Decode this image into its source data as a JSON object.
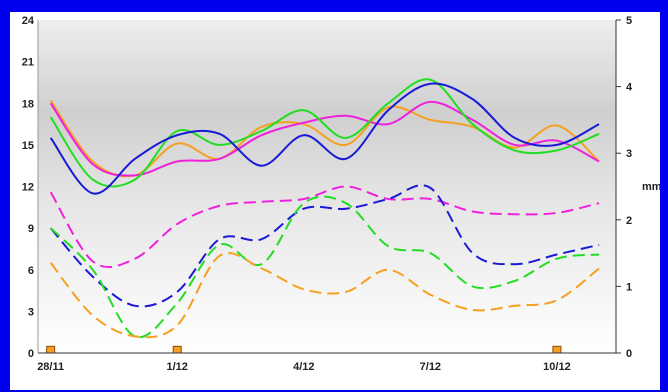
{
  "chart_data": {
    "type": "line",
    "title": "",
    "x_tick_labels": [
      "28/11",
      "1/12",
      "4/12",
      "7/12",
      "10/12"
    ],
    "x_tick_positions": [
      0,
      3,
      6,
      9,
      12
    ],
    "x_range": [
      -0.3,
      13.4
    ],
    "y_left": {
      "range": [
        0,
        24
      ],
      "ticks": [
        0,
        3,
        6,
        9,
        12,
        15,
        18,
        21,
        24
      ]
    },
    "y_right": {
      "label": "mm",
      "range": [
        0,
        5
      ],
      "ticks": [
        0,
        1,
        2,
        3,
        4,
        5
      ]
    },
    "colors": {
      "blue": "#1a1ad6",
      "green": "#22dd22",
      "orange": "#f5a020",
      "magenta": "#ee22dd",
      "bar": "#f5a020"
    },
    "series": [
      {
        "color": "orange",
        "style": "solid",
        "axis": "left",
        "x": [
          0,
          1,
          2,
          3,
          4,
          5,
          6,
          7,
          8,
          9,
          10,
          11,
          12,
          13
        ],
        "y": [
          18.2,
          13.8,
          12.8,
          15.1,
          14.0,
          16.3,
          16.5,
          15.0,
          17.7,
          16.8,
          16.3,
          14.8,
          16.4,
          13.8
        ]
      },
      {
        "color": "magenta",
        "style": "solid",
        "axis": "left",
        "x": [
          0,
          1,
          2,
          3,
          4,
          5,
          6,
          7,
          8,
          9,
          10,
          11,
          12,
          13
        ],
        "y": [
          18.0,
          13.6,
          12.8,
          13.8,
          14.0,
          15.7,
          16.6,
          17.1,
          16.5,
          18.1,
          16.8,
          15.0,
          15.3,
          13.8
        ]
      },
      {
        "color": "green",
        "style": "solid",
        "axis": "left",
        "x": [
          0,
          1,
          2,
          3,
          4,
          5,
          6,
          7,
          8,
          9,
          10,
          11,
          12,
          13
        ],
        "y": [
          17.0,
          12.5,
          12.5,
          16.0,
          15.0,
          16.0,
          17.5,
          15.5,
          18.0,
          19.7,
          16.5,
          14.6,
          14.6,
          15.8
        ]
      },
      {
        "color": "blue",
        "style": "solid",
        "axis": "left",
        "x": [
          0,
          1,
          2,
          3,
          4,
          5,
          6,
          7,
          8,
          9,
          10,
          11,
          12,
          13
        ],
        "y": [
          15.5,
          11.5,
          14.0,
          15.7,
          15.8,
          13.5,
          15.7,
          14.0,
          17.5,
          19.4,
          18.3,
          15.5,
          15.0,
          16.5
        ]
      },
      {
        "color": "magenta",
        "style": "dashed",
        "axis": "left",
        "x": [
          0,
          1,
          2,
          3,
          4,
          5,
          6,
          7,
          8,
          9,
          10,
          11,
          12,
          13
        ],
        "y": [
          11.6,
          6.6,
          6.8,
          9.3,
          10.6,
          10.9,
          11.1,
          12.0,
          11.1,
          11.1,
          10.2,
          10.0,
          10.1,
          10.8
        ]
      },
      {
        "color": "blue",
        "style": "dashed",
        "axis": "left",
        "x": [
          0,
          1,
          2,
          3,
          4,
          5,
          6,
          7,
          8,
          9,
          10,
          11,
          12,
          13
        ],
        "y": [
          9.0,
          5.5,
          3.4,
          4.4,
          8.2,
          8.2,
          10.4,
          10.4,
          11.1,
          11.9,
          7.2,
          6.4,
          7.1,
          7.8
        ]
      },
      {
        "color": "green",
        "style": "dashed",
        "axis": "left",
        "x": [
          0,
          1,
          2,
          3,
          4,
          5,
          6,
          7,
          8,
          9,
          10,
          11,
          12,
          13
        ],
        "y": [
          9.0,
          6.0,
          1.2,
          3.6,
          7.8,
          6.4,
          10.8,
          10.8,
          7.7,
          7.2,
          4.8,
          5.2,
          6.8,
          7.1
        ]
      },
      {
        "color": "orange",
        "style": "dashed",
        "axis": "left",
        "x": [
          0,
          1,
          2,
          3,
          4,
          5,
          6,
          7,
          8,
          9,
          10,
          11,
          12,
          13
        ],
        "y": [
          6.5,
          2.7,
          1.2,
          2.0,
          7.0,
          6.1,
          4.6,
          4.4,
          6.0,
          4.2,
          3.1,
          3.4,
          3.8,
          6.1
        ]
      }
    ],
    "precipitation_bars": {
      "axis": "right",
      "x": [
        0,
        3,
        12
      ],
      "values": [
        0.1,
        0.1,
        0.1
      ]
    },
    "grid": false,
    "legend": "none"
  }
}
